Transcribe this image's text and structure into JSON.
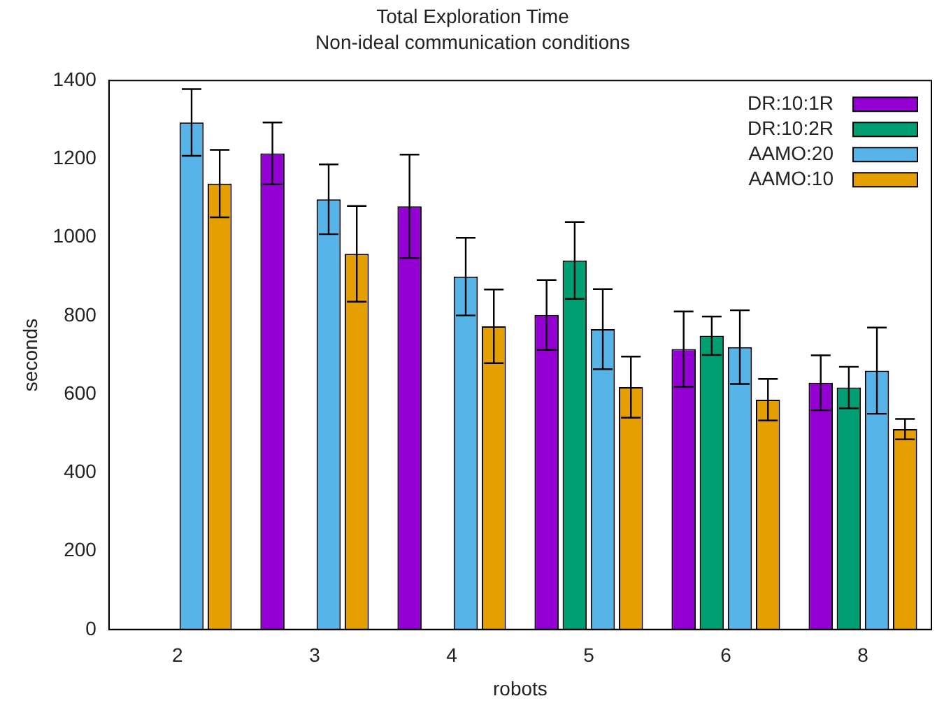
{
  "chart_data": {
    "type": "bar",
    "title": "Total Exploration Time",
    "subtitle": "Non-ideal communication conditions",
    "xlabel": "robots",
    "ylabel": "seconds",
    "categories": [
      "2",
      "3",
      "4",
      "5",
      "6",
      "8"
    ],
    "series": [
      {
        "name": "DR:10:1R",
        "color": "#9400d3",
        "values": [
          null,
          1214,
          1079,
          802,
          715,
          629
        ],
        "errors": [
          null,
          79,
          132,
          89,
          96,
          70
        ]
      },
      {
        "name": "DR:10:2R",
        "color": "#009e73",
        "values": [
          null,
          null,
          null,
          941,
          749,
          617
        ],
        "errors": [
          null,
          null,
          null,
          98,
          49,
          53
        ]
      },
      {
        "name": "AAMO:20",
        "color": "#56b4e9",
        "values": [
          1293,
          1097,
          900,
          766,
          720,
          660
        ],
        "errors": [
          85,
          89,
          99,
          102,
          94,
          110
        ]
      },
      {
        "name": "AAMO:10",
        "color": "#e69f00",
        "values": [
          1137,
          958,
          773,
          618,
          586,
          511
        ],
        "errors": [
          86,
          122,
          94,
          78,
          53,
          26
        ]
      }
    ],
    "ylim": [
      0,
      1400
    ],
    "yticks": [
      0,
      200,
      400,
      600,
      800,
      1000,
      1200,
      1400
    ],
    "grid": false,
    "legend": "top right"
  }
}
